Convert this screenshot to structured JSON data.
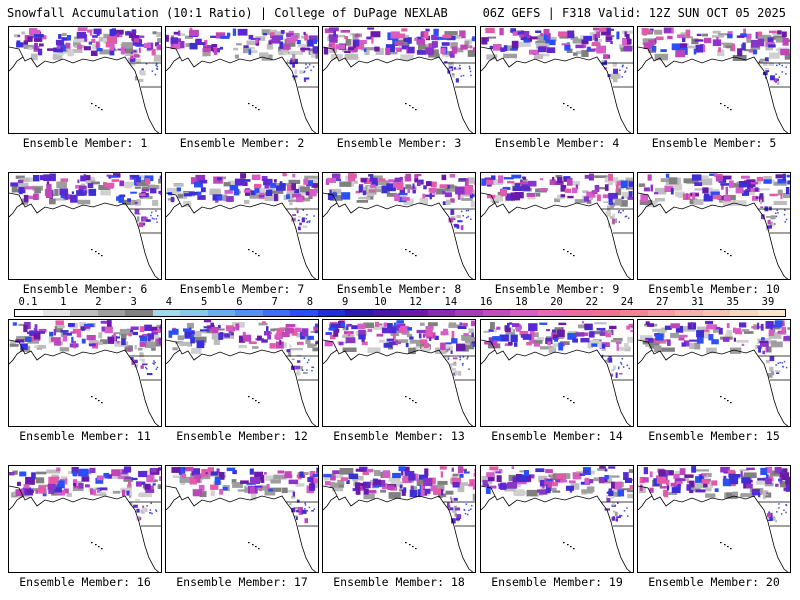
{
  "header": {
    "left": "Snowfall Accumulation (10:1 Ratio) | College of DuPage NEXLAB",
    "right": "06Z GEFS | F318 Valid: 12Z SUN OCT 05 2025"
  },
  "panels": [
    {
      "label": "Ensemble Member: 1",
      "member": 1
    },
    {
      "label": "Ensemble Member: 2",
      "member": 2
    },
    {
      "label": "Ensemble Member: 3",
      "member": 3
    },
    {
      "label": "Ensemble Member: 4",
      "member": 4
    },
    {
      "label": "Ensemble Member: 5",
      "member": 5
    },
    {
      "label": "Ensemble Member: 6",
      "member": 6
    },
    {
      "label": "Ensemble Member: 7",
      "member": 7
    },
    {
      "label": "Ensemble Member: 8",
      "member": 8
    },
    {
      "label": "Ensemble Member: 9",
      "member": 9
    },
    {
      "label": "Ensemble Member: 10",
      "member": 10
    },
    {
      "label": "Ensemble Member: 11",
      "member": 11
    },
    {
      "label": "Ensemble Member: 12",
      "member": 12
    },
    {
      "label": "Ensemble Member: 13",
      "member": 13
    },
    {
      "label": "Ensemble Member: 14",
      "member": 14
    },
    {
      "label": "Ensemble Member: 15",
      "member": 15
    },
    {
      "label": "Ensemble Member: 16",
      "member": 16
    },
    {
      "label": "Ensemble Member: 17",
      "member": 17
    },
    {
      "label": "Ensemble Member: 18",
      "member": 18
    },
    {
      "label": "Ensemble Member: 19",
      "member": 19
    },
    {
      "label": "Ensemble Member: 20",
      "member": 20
    }
  ],
  "colorbar": {
    "ticks": [
      "0.1",
      "1",
      "2",
      "3",
      "4",
      "5",
      "6",
      "7",
      "8",
      "9",
      "10",
      "12",
      "14",
      "16",
      "18",
      "20",
      "22",
      "24",
      "27",
      "31",
      "35",
      "39"
    ],
    "colors": [
      "#ffffff",
      "#e6e6e6",
      "#bdbdbd",
      "#9e9e9e",
      "#808080",
      "#a3d9ea",
      "#88c9ee",
      "#6aaef0",
      "#5290f2",
      "#3c6ff4",
      "#2a4ff6",
      "#1c2fd8",
      "#2a1ab0",
      "#4a15a8",
      "#6a1aa8",
      "#8a2ab0",
      "#a83cb8",
      "#c04cc0",
      "#d65cc8",
      "#e66ab8",
      "#ee6aa0",
      "#f07090",
      "#f28490",
      "#f49aa0",
      "#f6b0a8",
      "#f8c4b0",
      "#fad6bc",
      "#fce6cc"
    ]
  }
}
